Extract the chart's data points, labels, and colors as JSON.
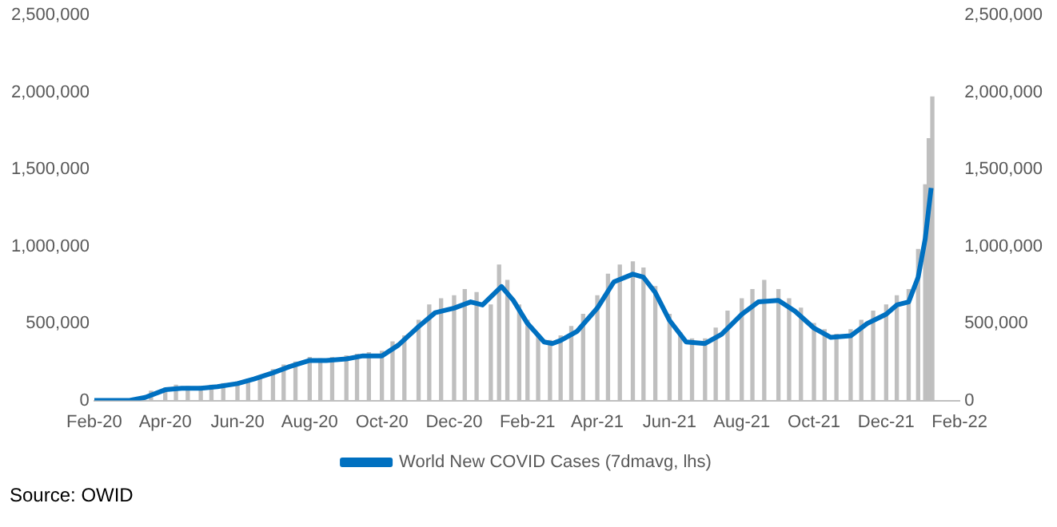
{
  "chart_data": {
    "type": "line",
    "annotations": [
      "Source: OWID"
    ],
    "legend": "bottom",
    "grid": false,
    "xlim": [
      "2020-02-01",
      "2022-02-01"
    ],
    "xticks": [
      {
        "value": "2020-02-01",
        "label": "Feb-20"
      },
      {
        "value": "2020-04-01",
        "label": "Apr-20"
      },
      {
        "value": "2020-06-01",
        "label": "Jun-20"
      },
      {
        "value": "2020-08-01",
        "label": "Aug-20"
      },
      {
        "value": "2020-10-01",
        "label": "Oct-20"
      },
      {
        "value": "2020-12-01",
        "label": "Dec-20"
      },
      {
        "value": "2021-02-01",
        "label": "Feb-21"
      },
      {
        "value": "2021-04-01",
        "label": "Apr-21"
      },
      {
        "value": "2021-06-01",
        "label": "Jun-21"
      },
      {
        "value": "2021-08-01",
        "label": "Aug-21"
      },
      {
        "value": "2021-10-01",
        "label": "Oct-21"
      },
      {
        "value": "2021-12-01",
        "label": "Dec-21"
      },
      {
        "value": "2022-02-01",
        "label": "Feb-22"
      }
    ],
    "ylim": [
      0,
      2500000
    ],
    "yticks": [
      0,
      {
        "value": 500000,
        "label": "500,000"
      },
      {
        "value": 1000000,
        "label": "1,000,000"
      },
      {
        "value": 1500000,
        "label": "1,500,000"
      },
      {
        "value": 2000000,
        "label": "2,000,000"
      },
      {
        "value": 2500000,
        "label": "2,500,000"
      }
    ],
    "y2lim": [
      0,
      2500000
    ],
    "y2ticks": [
      0,
      {
        "value": 500000,
        "label": "500,000"
      },
      {
        "value": 1000000,
        "label": "1,000,000"
      },
      {
        "value": 1500000,
        "label": "1,500,000"
      },
      {
        "value": 2000000,
        "label": "2,000,000"
      },
      {
        "value": 2500000,
        "label": "2,500,000"
      }
    ],
    "series": [
      {
        "type": "bar",
        "color": "#bfbfbf",
        "x": [
          "2020-03-10",
          "2020-03-20",
          "2020-04-01",
          "2020-04-10",
          "2020-04-20",
          "2020-05-01",
          "2020-05-10",
          "2020-05-20",
          "2020-06-01",
          "2020-06-10",
          "2020-06-20",
          "2020-07-01",
          "2020-07-10",
          "2020-07-20",
          "2020-08-01",
          "2020-08-10",
          "2020-08-20",
          "2020-09-01",
          "2020-09-10",
          "2020-09-20",
          "2020-10-01",
          "2020-10-10",
          "2020-10-20",
          "2020-11-01",
          "2020-11-10",
          "2020-11-20",
          "2020-12-01",
          "2020-12-10",
          "2020-12-20",
          "2021-01-01",
          "2021-01-08",
          "2021-01-15",
          "2021-01-25",
          "2021-02-01",
          "2021-02-10",
          "2021-02-20",
          "2021-03-01",
          "2021-03-10",
          "2021-03-20",
          "2021-04-01",
          "2021-04-10",
          "2021-04-20",
          "2021-05-01",
          "2021-05-10",
          "2021-05-20",
          "2021-06-01",
          "2021-06-10",
          "2021-06-20",
          "2021-07-01",
          "2021-07-10",
          "2021-07-20",
          "2021-08-01",
          "2021-08-10",
          "2021-08-20",
          "2021-09-01",
          "2021-09-10",
          "2021-09-20",
          "2021-10-01",
          "2021-10-10",
          "2021-10-20",
          "2021-11-01",
          "2021-11-10",
          "2021-11-20",
          "2021-12-01",
          "2021-12-10",
          "2021-12-20",
          "2021-12-28",
          "2022-01-03",
          "2022-01-06",
          "2022-01-09"
        ],
        "values": [
          10000,
          60000,
          80000,
          100000,
          90000,
          90000,
          100000,
          110000,
          120000,
          140000,
          160000,
          200000,
          230000,
          250000,
          280000,
          270000,
          280000,
          290000,
          300000,
          310000,
          320000,
          380000,
          420000,
          520000,
          620000,
          660000,
          680000,
          720000,
          700000,
          620000,
          880000,
          780000,
          620000,
          520000,
          430000,
          390000,
          420000,
          480000,
          560000,
          680000,
          820000,
          880000,
          900000,
          860000,
          740000,
          560000,
          440000,
          400000,
          400000,
          470000,
          580000,
          660000,
          720000,
          780000,
          720000,
          660000,
          600000,
          500000,
          460000,
          430000,
          460000,
          520000,
          580000,
          620000,
          680000,
          720000,
          980000,
          1400000,
          1700000,
          1970000
        ]
      },
      {
        "name": "World New COVID Cases (7dmavg, lhs)",
        "color": "#0070c0",
        "x": [
          "2020-02-01",
          "2020-03-01",
          "2020-03-15",
          "2020-04-01",
          "2020-04-15",
          "2020-05-01",
          "2020-05-15",
          "2020-06-01",
          "2020-06-15",
          "2020-07-01",
          "2020-07-15",
          "2020-08-01",
          "2020-08-15",
          "2020-09-01",
          "2020-09-15",
          "2020-10-01",
          "2020-10-15",
          "2020-11-01",
          "2020-11-15",
          "2020-12-01",
          "2020-12-15",
          "2020-12-25",
          "2021-01-10",
          "2021-01-20",
          "2021-02-01",
          "2021-02-15",
          "2021-02-22",
          "2021-03-01",
          "2021-03-15",
          "2021-04-01",
          "2021-04-15",
          "2021-05-01",
          "2021-05-10",
          "2021-05-20",
          "2021-06-01",
          "2021-06-15",
          "2021-07-01",
          "2021-07-15",
          "2021-08-01",
          "2021-08-15",
          "2021-09-01",
          "2021-09-15",
          "2021-10-01",
          "2021-10-15",
          "2021-11-01",
          "2021-11-15",
          "2021-12-01",
          "2021-12-10",
          "2021-12-20",
          "2021-12-28",
          "2022-01-03",
          "2022-01-08"
        ],
        "values": [
          0,
          0,
          20000,
          70000,
          80000,
          80000,
          90000,
          110000,
          140000,
          180000,
          220000,
          260000,
          260000,
          270000,
          290000,
          290000,
          360000,
          480000,
          570000,
          600000,
          640000,
          620000,
          740000,
          650000,
          500000,
          380000,
          370000,
          390000,
          450000,
          600000,
          770000,
          820000,
          800000,
          700000,
          520000,
          380000,
          370000,
          430000,
          560000,
          640000,
          650000,
          580000,
          470000,
          410000,
          420000,
          500000,
          560000,
          620000,
          640000,
          800000,
          1050000,
          1380000
        ]
      }
    ]
  }
}
